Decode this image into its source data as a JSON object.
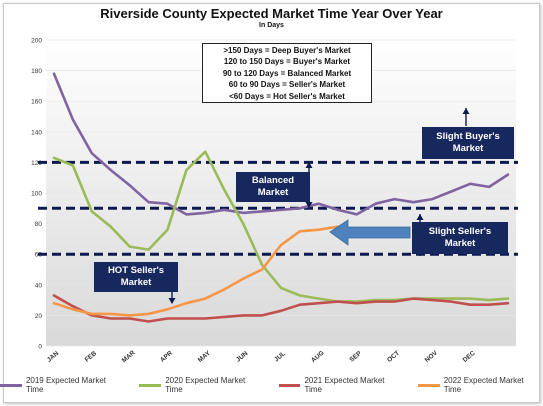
{
  "chart_data": {
    "type": "line",
    "title": "Riverside County Expected Market Time Year Over Year",
    "subtitle": "In Days",
    "categories": [
      "JAN",
      "FEB",
      "MAR",
      "APR",
      "MAY",
      "JUN",
      "JUL",
      "AUG",
      "SEP",
      "OCT",
      "NOV",
      "DEC"
    ],
    "ylim": [
      0,
      200
    ],
    "yticks": [
      0,
      20,
      40,
      60,
      80,
      100,
      120,
      140,
      160,
      180,
      200
    ],
    "reference_lines": [
      60,
      90,
      120
    ],
    "legend_position": "bottom",
    "series": [
      {
        "name": "2019 Expected Market Time",
        "color": "#8064a2",
        "points": [
          [
            0,
            178
          ],
          [
            0.5,
            148
          ],
          [
            1,
            126
          ],
          [
            1.5,
            115
          ],
          [
            2,
            105
          ],
          [
            2.5,
            94
          ],
          [
            3,
            93
          ],
          [
            3.5,
            86
          ],
          [
            4,
            87
          ],
          [
            4.5,
            89
          ],
          [
            5,
            87
          ],
          [
            5.5,
            88
          ],
          [
            6,
            89
          ],
          [
            6.5,
            90
          ],
          [
            7,
            93
          ],
          [
            7.5,
            89
          ],
          [
            8,
            86
          ],
          [
            8.5,
            93
          ],
          [
            9,
            96
          ],
          [
            9.5,
            94
          ],
          [
            10,
            96
          ],
          [
            10.5,
            101
          ],
          [
            11,
            106
          ],
          [
            11.5,
            104
          ],
          [
            12,
            112
          ]
        ]
      },
      {
        "name": "2020 Expected Market Time",
        "color": "#9bbb59",
        "points": [
          [
            0,
            123
          ],
          [
            0.5,
            118
          ],
          [
            1,
            88
          ],
          [
            1.5,
            78
          ],
          [
            2,
            65
          ],
          [
            2.5,
            63
          ],
          [
            3,
            76
          ],
          [
            3.5,
            115
          ],
          [
            4,
            127
          ],
          [
            4.5,
            102
          ],
          [
            5,
            80
          ],
          [
            5.5,
            53
          ],
          [
            6,
            38
          ],
          [
            6.5,
            33
          ],
          [
            7,
            31
          ],
          [
            7.5,
            29
          ],
          [
            8,
            29
          ],
          [
            8.5,
            30
          ],
          [
            9,
            30
          ],
          [
            9.5,
            31
          ],
          [
            10,
            31
          ],
          [
            10.5,
            31
          ],
          [
            11,
            31
          ],
          [
            11.5,
            30
          ],
          [
            12,
            31
          ]
        ]
      },
      {
        "name": "2021 Expected Market Time",
        "color": "#c0504d",
        "points": [
          [
            0,
            33
          ],
          [
            0.5,
            26
          ],
          [
            1,
            20
          ],
          [
            1.5,
            18
          ],
          [
            2,
            18
          ],
          [
            2.5,
            16
          ],
          [
            3,
            18
          ],
          [
            3.5,
            18
          ],
          [
            4,
            18
          ],
          [
            4.5,
            19
          ],
          [
            5,
            20
          ],
          [
            5.5,
            20
          ],
          [
            6,
            23
          ],
          [
            6.5,
            27
          ],
          [
            7,
            28
          ],
          [
            7.5,
            29
          ],
          [
            8,
            28
          ],
          [
            8.5,
            29
          ],
          [
            9,
            29
          ],
          [
            9.5,
            31
          ],
          [
            10,
            30
          ],
          [
            10.5,
            29
          ],
          [
            11,
            27
          ],
          [
            11.5,
            27
          ],
          [
            12,
            28
          ]
        ]
      },
      {
        "name": "2022 Expected Market Time",
        "color": "#f79646",
        "points": [
          [
            0,
            28
          ],
          [
            0.5,
            24
          ],
          [
            1,
            21
          ],
          [
            1.5,
            21
          ],
          [
            2,
            20
          ],
          [
            2.5,
            21
          ],
          [
            3,
            24
          ],
          [
            3.5,
            28
          ],
          [
            4,
            31
          ],
          [
            4.5,
            37
          ],
          [
            5,
            44
          ],
          [
            5.5,
            50
          ],
          [
            6,
            66
          ],
          [
            6.5,
            75
          ],
          [
            7,
            76
          ],
          [
            7.5,
            78
          ]
        ]
      }
    ]
  },
  "legend_box": {
    "lines": [
      ">150 Days = Deep Buyer's Market",
      "120 to 150 Days = Buyer's Market",
      "90 to 120 Days = Balanced Market",
      "60 to 90 Days = Seller's Market",
      "<60 Days = Hot Seller's Market"
    ]
  },
  "zones": {
    "buyers": "Slight Buyer's Market",
    "balanced": "Balanced Market",
    "sellers": "Slight Seller's Market",
    "hot": "HOT Seller's Market"
  },
  "colors": {
    "zone_box": "#17285e",
    "dashed_line": "#0d1a4f",
    "arrow": "#4f81bd"
  }
}
